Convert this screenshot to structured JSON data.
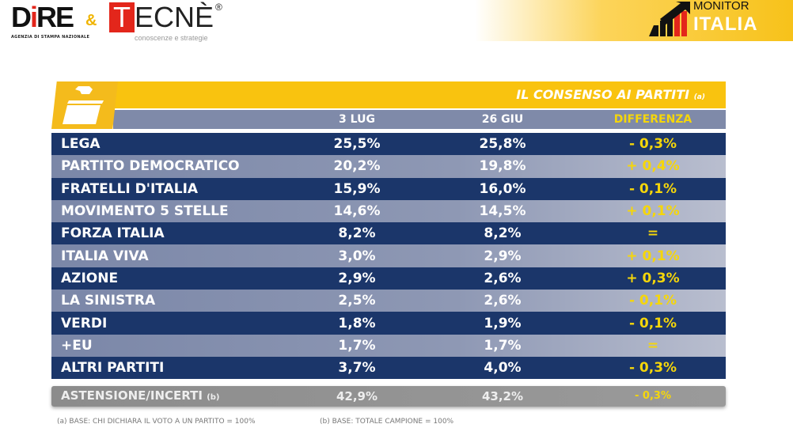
{
  "logos": {
    "dire": "DiRE",
    "dire_subtitle": "AGENZIA DI STAMPA NAZIONALE",
    "ampersand": "&",
    "tecne": "TECNÈ",
    "tecne_subtitle": "conoscenze e strategie",
    "monitor": "MONITOR",
    "italia": "ITALIA"
  },
  "colors": {
    "yellow": "#f9c30f",
    "navy": "#1b366a",
    "header_grey": "#7f8aa9",
    "diff_yellow": "#f5d60a",
    "abstention_grey": "#8c8c8c"
  },
  "chart_data": {
    "type": "table",
    "title": "IL CONSENSO AI PARTITI",
    "title_note": "(a)",
    "columns": [
      "3 LUG",
      "26 GIU",
      "DIFFERENZA"
    ],
    "rows": [
      {
        "party": "LEGA",
        "jul3": "25,5%",
        "jun26": "25,8%",
        "diff": "- 0,3%"
      },
      {
        "party": "PARTITO DEMOCRATICO",
        "jul3": "20,2%",
        "jun26": "19,8%",
        "diff": "+ 0,4%"
      },
      {
        "party": "FRATELLI D'ITALIA",
        "jul3": "15,9%",
        "jun26": "16,0%",
        "diff": "- 0,1%"
      },
      {
        "party": "MOVIMENTO 5 STELLE",
        "jul3": "14,6%",
        "jun26": "14,5%",
        "diff": "+ 0,1%"
      },
      {
        "party": "FORZA ITALIA",
        "jul3": "8,2%",
        "jun26": "8,2%",
        "diff": "="
      },
      {
        "party": "ITALIA VIVA",
        "jul3": "3,0%",
        "jun26": "2,9%",
        "diff": "+ 0,1%"
      },
      {
        "party": "AZIONE",
        "jul3": "2,9%",
        "jun26": "2,6%",
        "diff": "+ 0,3%"
      },
      {
        "party": "LA SINISTRA",
        "jul3": "2,5%",
        "jun26": "2,6%",
        "diff": "- 0,1%"
      },
      {
        "party": "VERDI",
        "jul3": "1,8%",
        "jun26": "1,9%",
        "diff": "- 0,1%"
      },
      {
        "party": "+EU",
        "jul3": "1,7%",
        "jun26": "1,7%",
        "diff": "="
      },
      {
        "party": "ALTRI PARTITI",
        "jul3": "3,7%",
        "jun26": "4,0%",
        "diff": "- 0,3%"
      }
    ],
    "abstention": {
      "label": "ASTENSIONE/INCERTI",
      "note": "(b)",
      "jul3": "42,9%",
      "jun26": "43,2%",
      "diff": "- 0,3%"
    }
  },
  "footnotes": {
    "a": "(a)   BASE: CHI DICHIARA IL VOTO A UN PARTITO = 100%",
    "b": "(b)   BASE: TOTALE CAMPIONE = 100%"
  },
  "icons": {
    "header": "ballot-box-icon"
  }
}
